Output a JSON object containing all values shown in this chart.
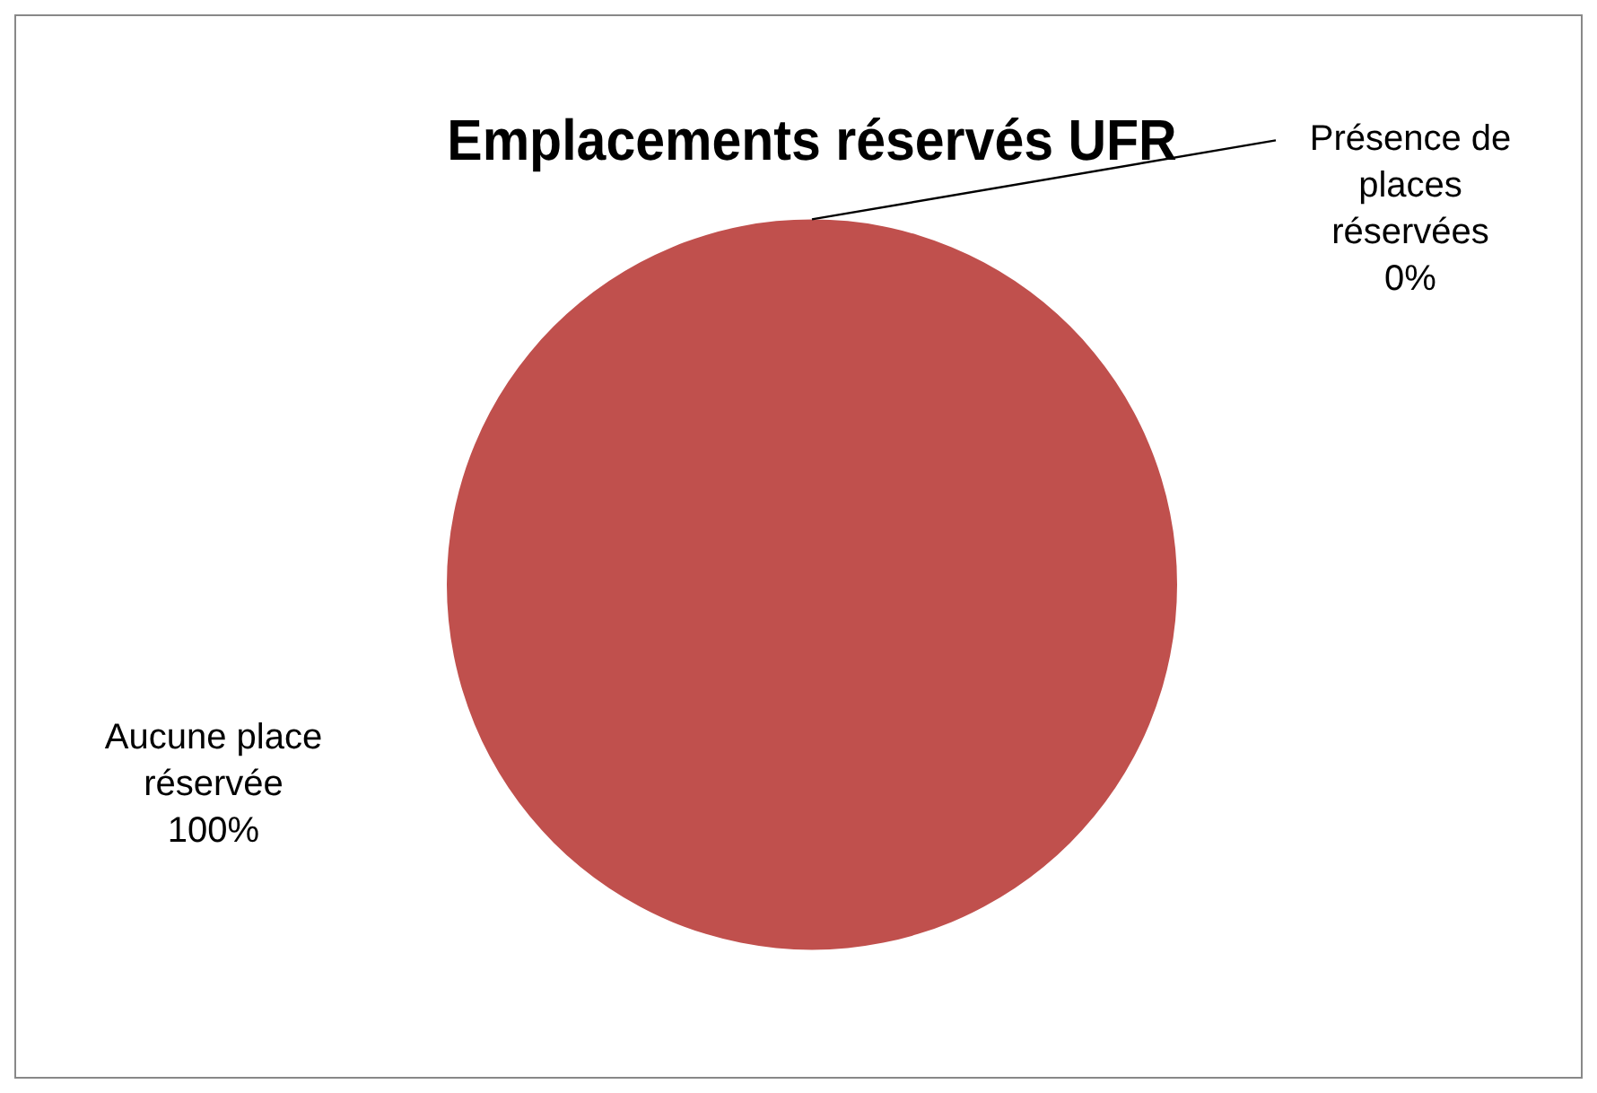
{
  "chart_data": {
    "type": "pie",
    "title": "Emplacements réservés UFR",
    "categories": [
      "Présence de places réservées",
      "Aucune place réservée"
    ],
    "values": [
      0,
      100
    ],
    "colors": [
      "#4f81bd",
      "#c0504d"
    ],
    "value_labels": [
      "0%",
      "100%"
    ],
    "legend": false
  }
}
